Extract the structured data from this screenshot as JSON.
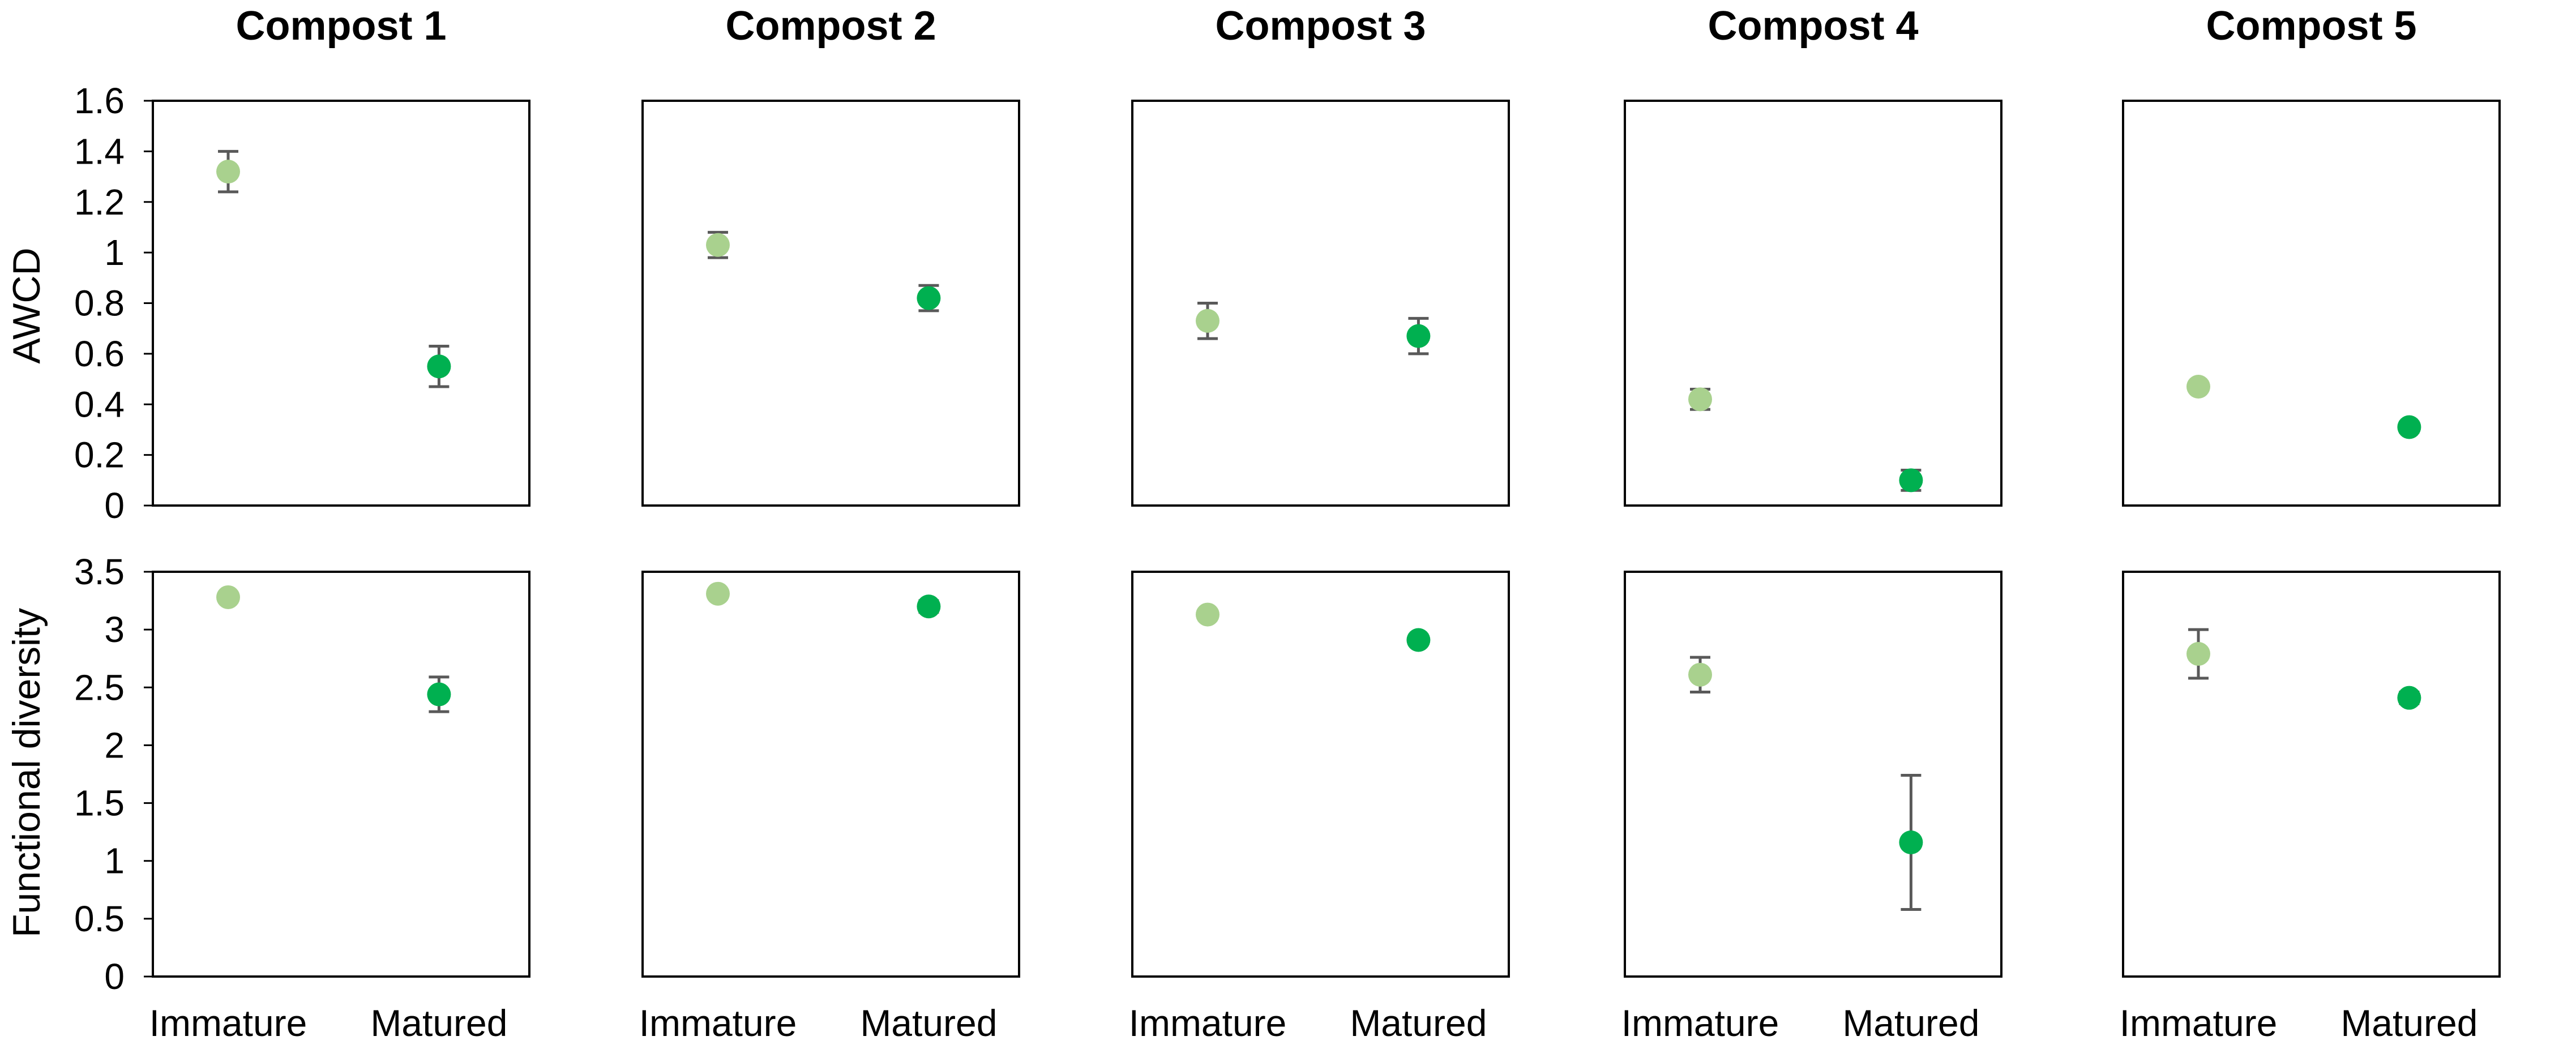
{
  "chart_data": {
    "type": "scatter",
    "categories": [
      "Immature",
      "Matured"
    ],
    "colors": {
      "Immature": "#a9d18e",
      "Matured": "#00b050",
      "error_bar": "#595959"
    },
    "grid": false,
    "legend": "none",
    "rows": [
      {
        "ylabel": "AWCD",
        "ylim": [
          0,
          1.6
        ],
        "yticks": [
          "0",
          "0.2",
          "0.4",
          "0.6",
          "0.8",
          "1",
          "1.2",
          "1.4",
          "1.6"
        ]
      },
      {
        "ylabel": "Functional diversity",
        "ylim": [
          0,
          3.5
        ],
        "yticks": [
          "0",
          "0.5",
          "1",
          "1.5",
          "2",
          "2.5",
          "3",
          "3.5"
        ]
      }
    ],
    "panels": [
      {
        "title": "Compost 1",
        "awcd": {
          "values": [
            1.32,
            0.55
          ],
          "errors": [
            0.08,
            0.08
          ]
        },
        "functional_diversity": {
          "values": [
            3.28,
            2.44
          ],
          "errors": [
            0.02,
            0.15
          ]
        }
      },
      {
        "title": "Compost 2",
        "awcd": {
          "values": [
            1.03,
            0.82
          ],
          "errors": [
            0.05,
            0.05
          ]
        },
        "functional_diversity": {
          "values": [
            3.31,
            3.2
          ],
          "errors": [
            0.02,
            0.05
          ]
        }
      },
      {
        "title": "Compost 3",
        "awcd": {
          "values": [
            0.73,
            0.67
          ],
          "errors": [
            0.07,
            0.07
          ]
        },
        "functional_diversity": {
          "values": [
            3.13,
            2.91
          ],
          "errors": [
            0.03,
            0.02
          ]
        }
      },
      {
        "title": "Compost 4",
        "awcd": {
          "values": [
            0.42,
            0.1
          ],
          "errors": [
            0.04,
            0.04
          ]
        },
        "functional_diversity": {
          "values": [
            2.61,
            1.16
          ],
          "errors": [
            0.15,
            0.58
          ]
        }
      },
      {
        "title": "Compost 5",
        "awcd": {
          "values": [
            0.47,
            0.31
          ],
          "errors": [
            0.01,
            0.02
          ]
        },
        "functional_diversity": {
          "values": [
            2.79,
            2.41
          ],
          "errors": [
            0.21,
            0.05
          ]
        }
      }
    ]
  }
}
